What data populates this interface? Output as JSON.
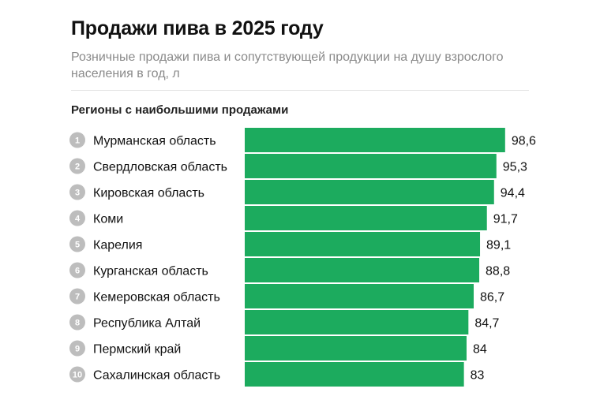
{
  "title": "Продажи пива в 2025 году",
  "subtitle": "Розничные продажи пива и сопутствующей продукции на душу взрослого населения в год, л",
  "section_label": "Регионы с наибольшими продажами",
  "colors": {
    "bar": "#1cab5e",
    "rank_badge": "#bdbdbd",
    "text": "#111111"
  },
  "chart_data": {
    "type": "bar",
    "orientation": "horizontal",
    "title": "Продажи пива в 2025 году",
    "subtitle": "Розничные продажи пива и сопутствующей продукции на душу взрослого населения в год, л",
    "ylabel": "Регионы с наибольшими продажами",
    "ranks": [
      "1",
      "2",
      "3",
      "4",
      "5",
      "6",
      "7",
      "8",
      "9",
      "10"
    ],
    "categories": [
      "Мурманская область",
      "Свердловская область",
      "Кировская область",
      "Коми",
      "Карелия",
      "Курганская область",
      "Кемеровская область",
      "Республика Алтай",
      "Пермский край",
      "Сахалинская область"
    ],
    "values": [
      98.6,
      95.3,
      94.4,
      91.7,
      89.1,
      88.8,
      86.7,
      84.7,
      84,
      83
    ],
    "value_labels": [
      "98,6",
      "95,3",
      "94,4",
      "91,7",
      "89,1",
      "88,8",
      "86,7",
      "84,7",
      "84",
      "83"
    ]
  }
}
